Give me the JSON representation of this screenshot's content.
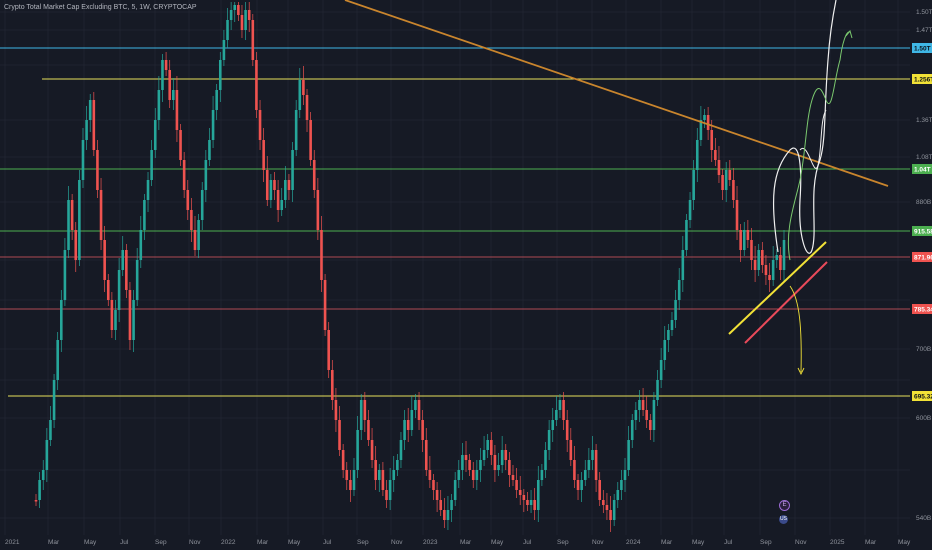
{
  "header": {
    "title": "Crypto Total Market Cap Excluding BTC, 5, 1W, CRYPTOCAP"
  },
  "colors": {
    "background": "#161a25",
    "grid": "#1f2330",
    "bull": "#26a69a",
    "bear": "#ef5350",
    "cyan_level": "#3fb7e6",
    "yellow_level": "#e6e05a",
    "green_level": "#4caf50",
    "red_level": "#e05a63",
    "trendline": "#c9852d",
    "support_yellow": "#f2e237",
    "support_red": "#e94a5a",
    "projection_white": "#f0f0f0",
    "projection_green": "#7bc96f"
  },
  "x_axis": {
    "labels": [
      "2021",
      "Mar",
      "May",
      "Jul",
      "Sep",
      "Nov",
      "2022",
      "Mar",
      "May",
      "Jul",
      "Sep",
      "Nov",
      "2023",
      "Mar",
      "May",
      "Jul",
      "Sep",
      "Nov",
      "2024",
      "Mar",
      "May",
      "Jul",
      "Sep",
      "Nov",
      "2025",
      "Mar",
      "May"
    ]
  },
  "y_axis": {
    "labels": [
      "1.50T",
      "1.47T",
      "1.36T",
      "1.08T",
      "880B",
      "700B",
      "600B",
      "540B"
    ]
  },
  "price_tags": [
    {
      "text": "1.50T",
      "color": "#3fb7e6",
      "text_color": "#0c1118"
    },
    {
      "text": "1.256T",
      "color": "#f2e237",
      "text_color": "#0c1118"
    },
    {
      "text": "1.04T",
      "color": "#4caf50",
      "text_color": "#ffffff"
    },
    {
      "text": "915.58B",
      "color": "#4caf50",
      "text_color": "#ffffff"
    },
    {
      "text": "871.96B",
      "color": "#ef5350",
      "text_color": "#ffffff"
    },
    {
      "text": "785.34B",
      "color": "#ef5350",
      "text_color": "#ffffff"
    },
    {
      "text": "695.32B",
      "color": "#f2e237",
      "text_color": "#0c1118"
    }
  ],
  "event_badges": [
    "E",
    "US"
  ]
}
